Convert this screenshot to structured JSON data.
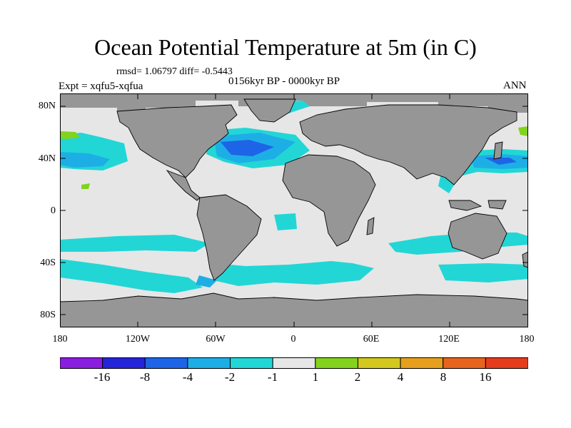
{
  "title": "Ocean Potential Temperature at 5m (in C)",
  "stats": "rmsd= 1.06797 diff= -0.5443",
  "experiment": "Expt = xqfu5-xqfua",
  "period": "0156kyr BP - 0000kyr BP",
  "season": "ANN",
  "axes": {
    "y_labels": [
      "80N",
      "40N",
      "0",
      "40S",
      "80S"
    ],
    "x_labels": [
      "180",
      "120W",
      "60W",
      "0",
      "60E",
      "120E",
      "180"
    ]
  },
  "colorbar": {
    "labels": [
      "-16",
      "-8",
      "-4",
      "-2",
      "-1",
      "1",
      "2",
      "4",
      "8",
      "16"
    ],
    "colors": [
      "#8a1ee0",
      "#2424d8",
      "#1e64e6",
      "#1eaee6",
      "#22d6d6",
      "#e6e6e6",
      "#82d21e",
      "#d2c81e",
      "#e6a01e",
      "#e6641e",
      "#e63c1e"
    ]
  },
  "colors": {
    "land": "#969696",
    "ocean_neutral": "#e6e6e6",
    "cool_1": "#22d6d6",
    "cool_2": "#1eaee6",
    "cool_3": "#1e64e6",
    "warm_1": "#82d21e"
  }
}
